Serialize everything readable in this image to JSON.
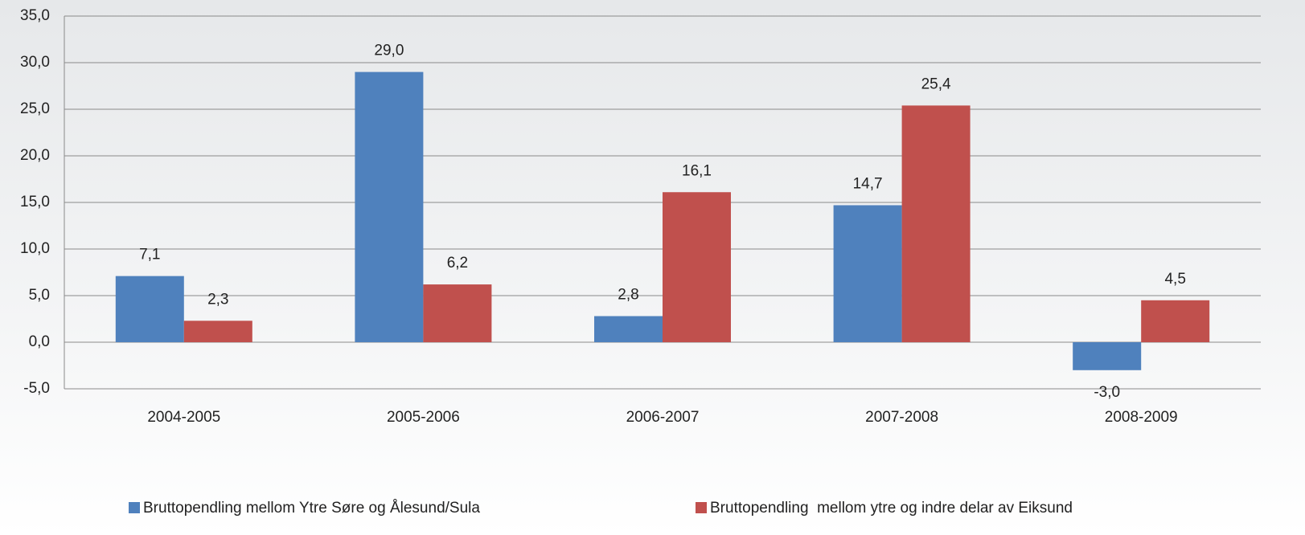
{
  "chart_data": {
    "type": "bar",
    "categories": [
      "2004-2005",
      "2005-2006",
      "2006-2007",
      "2007-2008",
      "2008-2009"
    ],
    "series": [
      {
        "name": "Bruttopendling mellom Ytre Søre og Ålesund/Sula",
        "color": "#4f81bd",
        "values": [
          7.1,
          29.0,
          2.8,
          14.7,
          -3.0
        ],
        "value_labels": [
          "7,1",
          "29,0",
          "2,8",
          "14,7",
          "-3,0"
        ]
      },
      {
        "name": "Bruttopendling  mellom ytre og indre delar av Eiksund",
        "color": "#c0504d",
        "values": [
          2.3,
          6.2,
          16.1,
          25.4,
          4.5
        ],
        "value_labels": [
          "2,3",
          "6,2",
          "16,1",
          "25,4",
          "4,5"
        ]
      }
    ],
    "ylim": [
      -5,
      35
    ],
    "yticks": [
      {
        "value": -5,
        "label": "-5,0"
      },
      {
        "value": 0,
        "label": "0,0"
      },
      {
        "value": 5,
        "label": "5,0"
      },
      {
        "value": 10,
        "label": "10,0"
      },
      {
        "value": 15,
        "label": "15,0"
      },
      {
        "value": 20,
        "label": "20,0"
      },
      {
        "value": 25,
        "label": "25,0"
      },
      {
        "value": 30,
        "label": "30,0"
      },
      {
        "value": 35,
        "label": "35,0"
      }
    ],
    "grid": true,
    "legend": "bottom"
  }
}
